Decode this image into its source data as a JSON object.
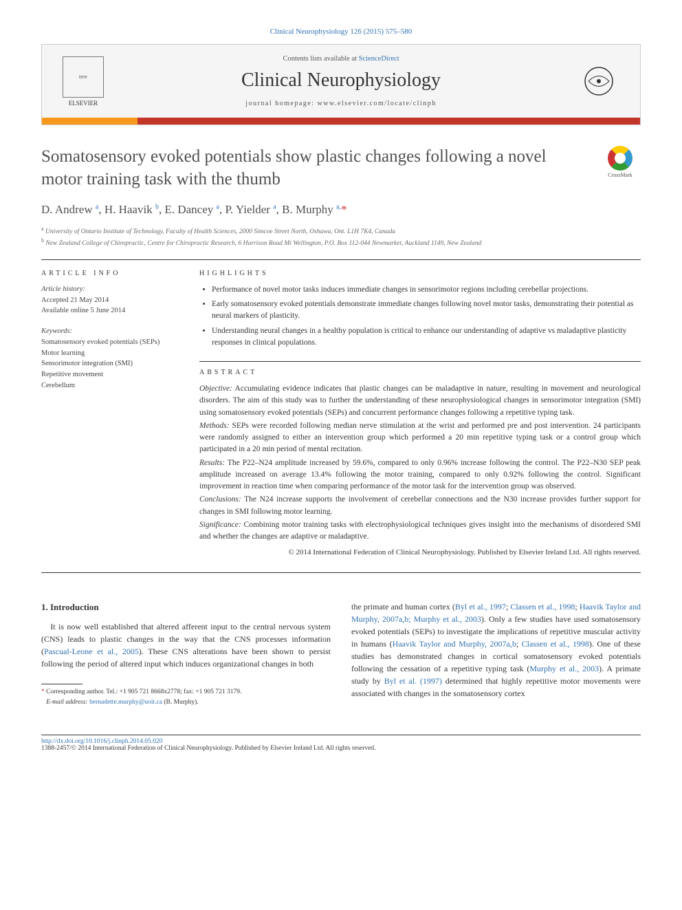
{
  "journal_ref": "Clinical Neurophysiology 126 (2015) 575–580",
  "header": {
    "contents_prefix": "Contents lists available at ",
    "contents_link": "ScienceDirect",
    "journal_title": "Clinical Neurophysiology",
    "homepage_prefix": "journal homepage: ",
    "homepage_url": "www.elsevier.com/locate/clinph",
    "publisher": "ELSEVIER"
  },
  "crossmark_label": "CrossMark",
  "article": {
    "title": "Somatosensory evoked potentials show plastic changes following a novel motor training task with the thumb",
    "authors_html": "D. Andrew <sup>a</sup>, H. Haavik <sup>b</sup>, E. Dancey <sup>a</sup>, P. Yielder <sup>a</sup>, B. Murphy <sup>a,</sup><span class='asterisk'>*</span>",
    "affiliations": {
      "a": "University of Ontario Institute of Technology, Faculty of Health Sciences, 2000 Simcoe Street North, Oshawa, Ont. L1H 7K4, Canada",
      "b": "New Zealand College of Chiropractic, Centre for Chiropractic Research, 6 Harrison Road Mt Wellington, P.O. Box 112-044 Newmarket, Auckland 1149, New Zealand"
    }
  },
  "info": {
    "section_label": "ARTICLE INFO",
    "history_label": "Article history:",
    "accepted": "Accepted 21 May 2014",
    "online": "Available online 5 June 2014",
    "keywords_label": "Keywords:",
    "keywords": [
      "Somatosensory evoked potentials (SEPs)",
      "Motor learning",
      "Sensorimotor integration (SMI)",
      "Repetitive movement",
      "Cerebellum"
    ]
  },
  "highlights": {
    "section_label": "HIGHLIGHTS",
    "items": [
      "Performance of novel motor tasks induces immediate changes in sensorimotor regions including cerebellar projections.",
      "Early somatosensory evoked potentials demonstrate immediate changes following novel motor tasks, demonstrating their potential as neural markers of plasticity.",
      "Understanding neural changes in a healthy population is critical to enhance our understanding of adaptive vs maladaptive plasticity responses in clinical populations."
    ]
  },
  "abstract": {
    "section_label": "ABSTRACT",
    "objective_label": "Objective:",
    "objective": "Accumulating evidence indicates that plastic changes can be maladaptive in nature, resulting in movement and neurological disorders. The aim of this study was to further the understanding of these neurophysiological changes in sensorimotor integration (SMI) using somatosensory evoked potentials (SEPs) and concurrent performance changes following a repetitive typing task.",
    "methods_label": "Methods:",
    "methods": "SEPs were recorded following median nerve stimulation at the wrist and performed pre and post intervention. 24 participants were randomly assigned to either an intervention group which performed a 20 min repetitive typing task or a control group which participated in a 20 min period of mental recitation.",
    "results_label": "Results:",
    "results": "The P22–N24 amplitude increased by 59.6%, compared to only 0.96% increase following the control. The P22–N30 SEP peak amplitude increased on average 13.4% following the motor training, compared to only 0.92% following the control. Significant improvement in reaction time when comparing performance of the motor task for the intervention group was observed.",
    "conclusions_label": "Conclusions:",
    "conclusions": "The N24 increase supports the involvement of cerebellar connections and the N30 increase provides further support for changes in SMI following motor learning.",
    "significance_label": "Significance:",
    "significance": "Combining motor training tasks with electrophysiological techniques gives insight into the mechanisms of disordered SMI and whether the changes are adaptive or maladaptive.",
    "copyright": "© 2014 International Federation of Clinical Neurophysiology. Published by Elsevier Ireland Ltd. All rights reserved."
  },
  "intro": {
    "heading": "1. Introduction",
    "col1_text": "It is now well established that altered afferent input to the central nervous system (CNS) leads to plastic changes in the way that the CNS processes information (",
    "col1_link1": "Pascual-Leone et al., 2005",
    "col1_text2": "). These CNS alterations have been shown to persist following the period of altered input which induces organizational changes in both",
    "col2_text": "the primate and human cortex (",
    "col2_link1": "Byl et al., 1997",
    "col2_sep1": "; ",
    "col2_link2": "Classen et al., 1998",
    "col2_sep2": "; ",
    "col2_link3": "Haavik Taylor and Murphy, 2007a,b; Murphy et al., 2003",
    "col2_text2": "). Only a few studies have used somatosensory evoked potentials (SEPs) to investigate the implications of repetitive muscular activity in humans (",
    "col2_link4": "Haavik Taylor and Murphy, 2007a,b",
    "col2_sep3": "; ",
    "col2_link5": "Classen et al., 1998",
    "col2_text3": "). One of these studies has demonstrated changes in cortical somatosensory evoked potentials following the cessation of a repetitive typing task (",
    "col2_link6": "Murphy et al., 2003",
    "col2_text4": "). A primate study by ",
    "col2_link7": "Byl et al. (1997)",
    "col2_text5": " determined that highly repetitive motor movements were associated with changes in the somatosensory cortex"
  },
  "footnotes": {
    "corr": "Corresponding author. Tel.: +1 905 721 8668x2778; fax: +1 905 721 3179.",
    "email_label": "E-mail address:",
    "email": "bernadette.murphy@uoit.ca",
    "email_name": "(B. Murphy)."
  },
  "footer": {
    "doi": "http://dx.doi.org/10.1016/j.clinph.2014.05.020",
    "issn_line": "1388-2457/© 2014 International Federation of Clinical Neurophysiology. Published by Elsevier Ireland Ltd. All rights reserved."
  },
  "colors": {
    "link": "#3070b0",
    "accent_orange": "#f8991d",
    "accent_red": "#c23528",
    "text": "#333333"
  }
}
